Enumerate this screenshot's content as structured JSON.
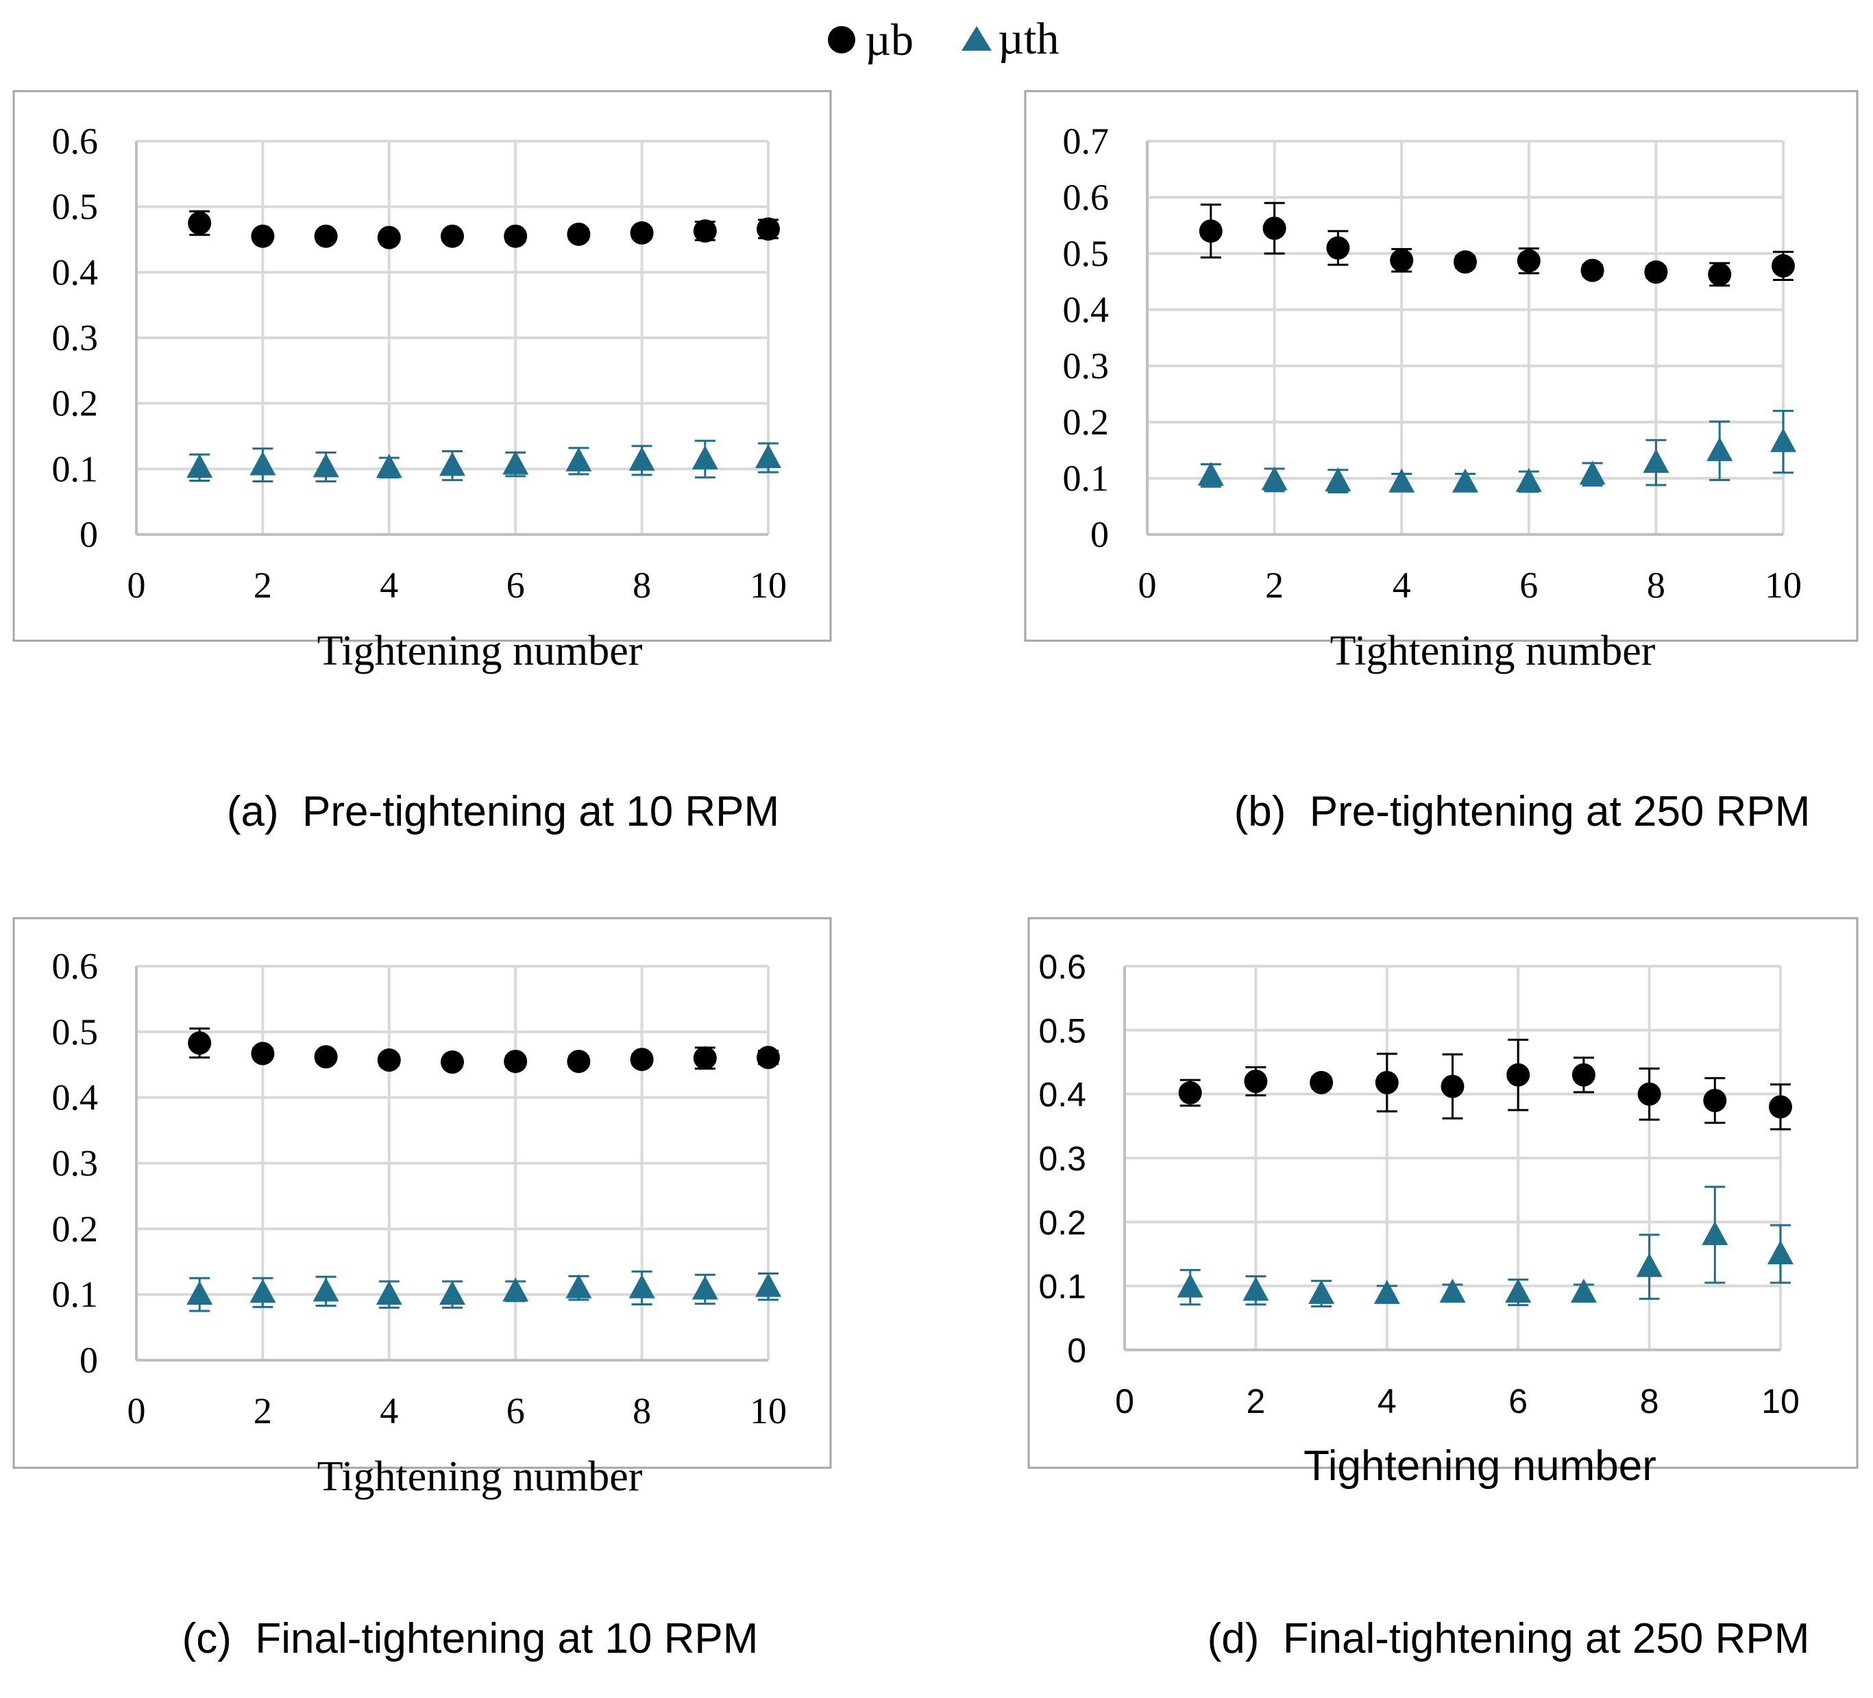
{
  "legend": {
    "items": [
      {
        "name": "µb",
        "marker": "circle",
        "color": "#000000"
      },
      {
        "name": "µth",
        "marker": "triangle",
        "color": "#1f6e8c"
      }
    ]
  },
  "chart_data": [
    {
      "type": "scatter",
      "caption_label": "(a)",
      "caption_text": "Pre-tightening at 10 RPM",
      "xlabel": "Tightening number",
      "ylabel": "",
      "xlim": [
        0,
        10
      ],
      "ylim": [
        0,
        0.6
      ],
      "xticks": [
        "0",
        "2",
        "4",
        "6",
        "8",
        "10"
      ],
      "yticks": [
        "0",
        "0.1",
        "0.2",
        "0.3",
        "0.4",
        "0.5",
        "0.6"
      ],
      "font": "serif",
      "grid": true,
      "x": [
        1,
        2,
        3,
        4,
        5,
        6,
        7,
        8,
        9,
        10
      ],
      "series": [
        {
          "name": "µb",
          "values": [
            0.475,
            0.455,
            0.455,
            0.453,
            0.455,
            0.455,
            0.458,
            0.46,
            0.463,
            0.466
          ],
          "errors": [
            0.018,
            0.006,
            0.006,
            0.006,
            0.006,
            0.008,
            0.008,
            0.008,
            0.014,
            0.014
          ]
        },
        {
          "name": "µth",
          "values": [
            0.102,
            0.106,
            0.103,
            0.102,
            0.105,
            0.107,
            0.112,
            0.113,
            0.115,
            0.117
          ],
          "errors": [
            0.02,
            0.025,
            0.022,
            0.015,
            0.022,
            0.018,
            0.02,
            0.022,
            0.028,
            0.022
          ]
        }
      ]
    },
    {
      "type": "scatter",
      "caption_label": "(b)",
      "caption_text": "Pre-tightening at 250 RPM",
      "xlabel": "Tightening number",
      "ylabel": "",
      "xlim": [
        0,
        10
      ],
      "ylim": [
        0,
        0.7
      ],
      "xticks": [
        "0",
        "2",
        "4",
        "6",
        "8",
        "10"
      ],
      "yticks": [
        "0",
        "0.1",
        "0.2",
        "0.3",
        "0.4",
        "0.5",
        "0.6",
        "0.7"
      ],
      "font": "serif",
      "grid": true,
      "x": [
        1,
        2,
        3,
        4,
        5,
        6,
        7,
        8,
        9,
        10
      ],
      "series": [
        {
          "name": "µb",
          "values": [
            0.54,
            0.545,
            0.51,
            0.488,
            0.485,
            0.487,
            0.47,
            0.467,
            0.463,
            0.478
          ],
          "errors": [
            0.047,
            0.045,
            0.03,
            0.02,
            0.01,
            0.022,
            0.01,
            0.01,
            0.02,
            0.025
          ]
        },
        {
          "name": "µth",
          "values": [
            0.105,
            0.097,
            0.095,
            0.093,
            0.093,
            0.094,
            0.107,
            0.128,
            0.149,
            0.165
          ],
          "errors": [
            0.02,
            0.02,
            0.02,
            0.015,
            0.015,
            0.018,
            0.02,
            0.04,
            0.052,
            0.055
          ]
        }
      ]
    },
    {
      "type": "scatter",
      "caption_label": "(c)",
      "caption_text": "Final-tightening at 10 RPM",
      "xlabel": "Tightening number",
      "ylabel": "",
      "xlim": [
        0,
        10
      ],
      "ylim": [
        0,
        0.6
      ],
      "xticks": [
        "0",
        "2",
        "4",
        "6",
        "8",
        "10"
      ],
      "yticks": [
        "0",
        "0.1",
        "0.2",
        "0.3",
        "0.4",
        "0.5",
        "0.6"
      ],
      "font": "serif",
      "grid": true,
      "x": [
        1,
        2,
        3,
        4,
        5,
        6,
        7,
        8,
        9,
        10
      ],
      "series": [
        {
          "name": "µb",
          "values": [
            0.483,
            0.467,
            0.462,
            0.457,
            0.454,
            0.455,
            0.455,
            0.458,
            0.46,
            0.461
          ],
          "errors": [
            0.022,
            0.008,
            0.008,
            0.008,
            0.006,
            0.008,
            0.008,
            0.008,
            0.016,
            0.01
          ]
        },
        {
          "name": "µth",
          "values": [
            0.1,
            0.103,
            0.105,
            0.1,
            0.1,
            0.105,
            0.11,
            0.11,
            0.108,
            0.112
          ],
          "errors": [
            0.025,
            0.022,
            0.022,
            0.02,
            0.02,
            0.015,
            0.018,
            0.025,
            0.022,
            0.02
          ]
        }
      ]
    },
    {
      "type": "scatter",
      "caption_label": "(d)",
      "caption_text": "Final-tightening at 250 RPM",
      "xlabel": "Tightening number",
      "ylabel": "",
      "xlim": [
        0,
        10
      ],
      "ylim": [
        0,
        0.6
      ],
      "xticks": [
        "0",
        "2",
        "4",
        "6",
        "8",
        "10"
      ],
      "yticks": [
        "0",
        "0.1",
        "0.2",
        "0.3",
        "0.4",
        "0.5",
        "0.6"
      ],
      "font": "sans",
      "grid": true,
      "x": [
        1,
        2,
        3,
        4,
        5,
        6,
        7,
        8,
        9,
        10
      ],
      "series": [
        {
          "name": "µb",
          "values": [
            0.402,
            0.42,
            0.418,
            0.418,
            0.412,
            0.43,
            0.43,
            0.4,
            0.39,
            0.38
          ],
          "errors": [
            0.02,
            0.022,
            0.008,
            0.045,
            0.05,
            0.055,
            0.027,
            0.04,
            0.035,
            0.035
          ]
        },
        {
          "name": "µth",
          "values": [
            0.098,
            0.093,
            0.088,
            0.088,
            0.09,
            0.09,
            0.09,
            0.13,
            0.18,
            0.15
          ],
          "errors": [
            0.027,
            0.022,
            0.02,
            0.012,
            0.012,
            0.02,
            0.012,
            0.05,
            0.075,
            0.045
          ]
        }
      ]
    }
  ]
}
